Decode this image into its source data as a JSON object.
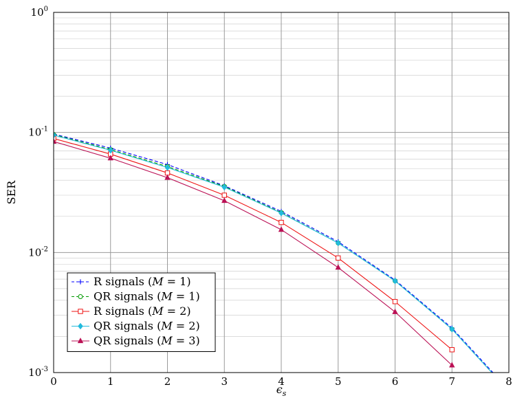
{
  "chart_data": {
    "type": "line",
    "title": "",
    "xlabel": "ϵs",
    "ylabel": "SER",
    "xlim": [
      0,
      8
    ],
    "ylim": [
      0.001,
      1
    ],
    "yscale": "log",
    "grid": "major-minor",
    "legend_position": "bottom-left",
    "x_ticks": [
      "0",
      "1",
      "2",
      "3",
      "4",
      "5",
      "6",
      "7",
      "8"
    ],
    "y_ticks": [
      "10^-3",
      "10^-2",
      "10^-1",
      "10^0"
    ],
    "series": [
      {
        "name": "R signals (M = 1)",
        "color": "#0000ff",
        "marker": "plus",
        "dash": "5,3",
        "x": [
          0,
          1,
          2,
          3,
          4,
          5,
          6,
          7,
          7.72
        ],
        "y": [
          0.097,
          0.074,
          0.054,
          0.036,
          0.022,
          0.0123,
          0.0059,
          0.00235,
          0.001
        ]
      },
      {
        "name": "QR signals (M = 1)",
        "color": "#009900",
        "marker": "circle",
        "dash": "5,3",
        "x": [
          0,
          1,
          2,
          3,
          4,
          5,
          6,
          7,
          7.7
        ],
        "y": [
          0.096,
          0.072,
          0.052,
          0.0355,
          0.0215,
          0.012,
          0.0058,
          0.0023,
          0.001
        ]
      },
      {
        "name": "R signals (M = 2)",
        "color": "#ee1111",
        "marker": "square",
        "dash": "",
        "x": [
          0,
          1,
          2,
          3,
          4,
          5,
          6,
          7
        ],
        "y": [
          0.089,
          0.066,
          0.046,
          0.03,
          0.0178,
          0.009,
          0.0039,
          0.00155
        ]
      },
      {
        "name": "QR signals (M = 2)",
        "color": "#22bbdd",
        "marker": "diamond",
        "dash": "",
        "x": [
          0,
          1,
          2,
          3,
          4,
          5,
          6,
          7,
          7.7
        ],
        "y": [
          0.095,
          0.071,
          0.051,
          0.035,
          0.0213,
          0.012,
          0.0058,
          0.0023,
          0.001
        ]
      },
      {
        "name": "QR signals (M = 3)",
        "color": "#bb1155",
        "marker": "triangle",
        "dash": "",
        "x": [
          0,
          1,
          2,
          3,
          4,
          5,
          6,
          7
        ],
        "y": [
          0.084,
          0.061,
          0.042,
          0.027,
          0.0155,
          0.0075,
          0.0032,
          0.00115
        ]
      }
    ],
    "legend_entries": [
      {
        "prefix": "R signals (",
        "var": "M",
        "suffix": " = 1)"
      },
      {
        "prefix": "QR signals (",
        "var": "M",
        "suffix": " = 1)"
      },
      {
        "prefix": "R signals (",
        "var": "M",
        "suffix": " = 2)"
      },
      {
        "prefix": "QR signals (",
        "var": "M",
        "suffix": " = 2)"
      },
      {
        "prefix": "QR signals (",
        "var": "M",
        "suffix": " = 3)"
      }
    ]
  }
}
